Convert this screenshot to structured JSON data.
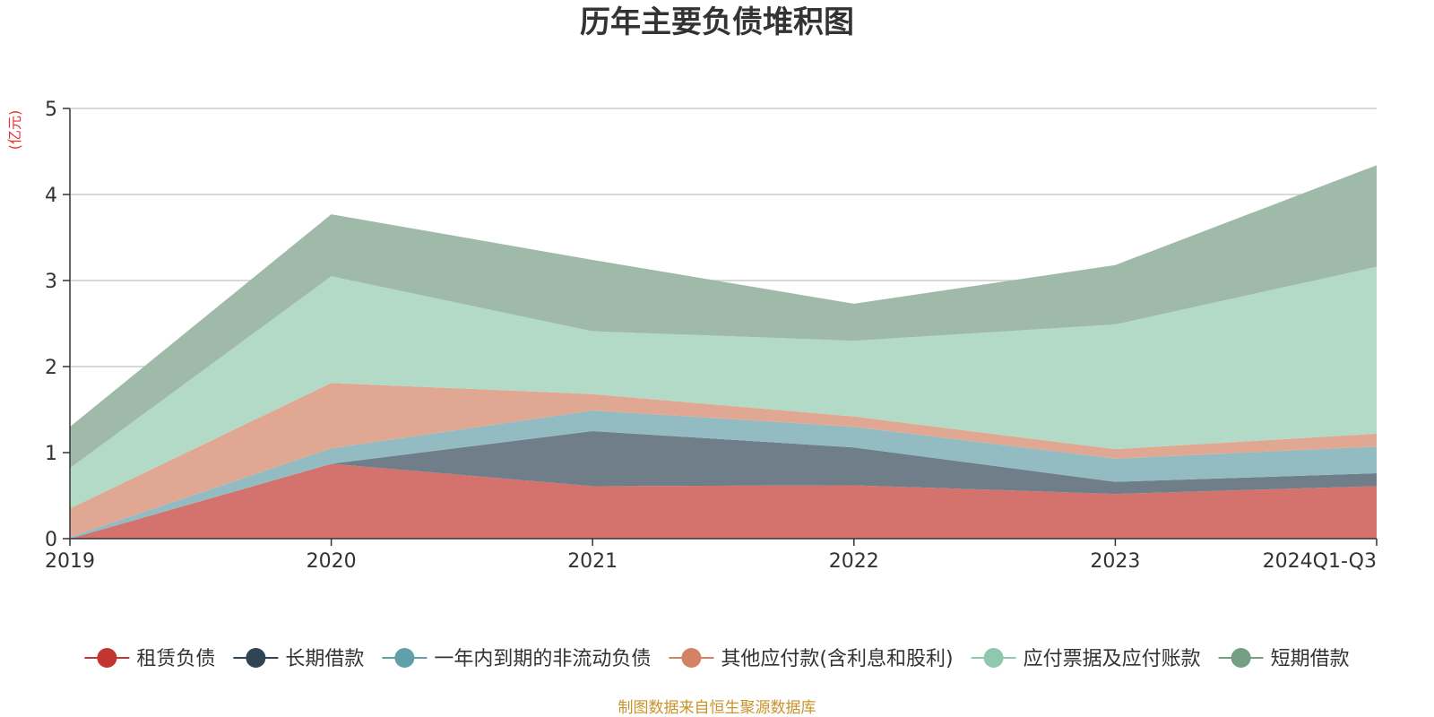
{
  "chart_data": {
    "type": "area",
    "title": "历年主要负债堆积图",
    "y_unit": "(亿元)",
    "source": "制图数据来自恒生聚源数据库",
    "categories": [
      "2019",
      "2020",
      "2021",
      "2022",
      "2023",
      "2024Q1-Q3"
    ],
    "ylim": [
      0,
      5
    ],
    "yticks": [
      0,
      1,
      2,
      3,
      4,
      5
    ],
    "stacked": true,
    "grid": true,
    "legend_position": "bottom",
    "series": [
      {
        "name": "租赁负债",
        "color": "#c23531",
        "fill": "#d4726e",
        "values": [
          0.0,
          0.87,
          0.61,
          0.62,
          0.52,
          0.61
        ]
      },
      {
        "name": "长期借款",
        "color": "#2f4554",
        "fill": "#707e89",
        "values": [
          0.0,
          0.0,
          0.64,
          0.44,
          0.14,
          0.15
        ]
      },
      {
        "name": "一年内到期的非流动负债",
        "color": "#61a0a8",
        "fill": "#92bcc2",
        "values": [
          0.02,
          0.18,
          0.24,
          0.24,
          0.27,
          0.31
        ]
      },
      {
        "name": "其他应付款(含利息和股利)",
        "color": "#d48265",
        "fill": "#e0a893",
        "values": [
          0.33,
          0.76,
          0.19,
          0.12,
          0.11,
          0.15
        ]
      },
      {
        "name": "应付票据及应付账款",
        "color": "#91c7ae",
        "fill": "#b3dac7",
        "values": [
          0.47,
          1.24,
          0.73,
          0.88,
          1.45,
          1.94
        ]
      },
      {
        "name": "短期借款",
        "color": "#749f83",
        "fill": "#9fbaa8",
        "values": [
          0.48,
          0.72,
          0.83,
          0.43,
          0.69,
          1.18
        ]
      }
    ]
  }
}
